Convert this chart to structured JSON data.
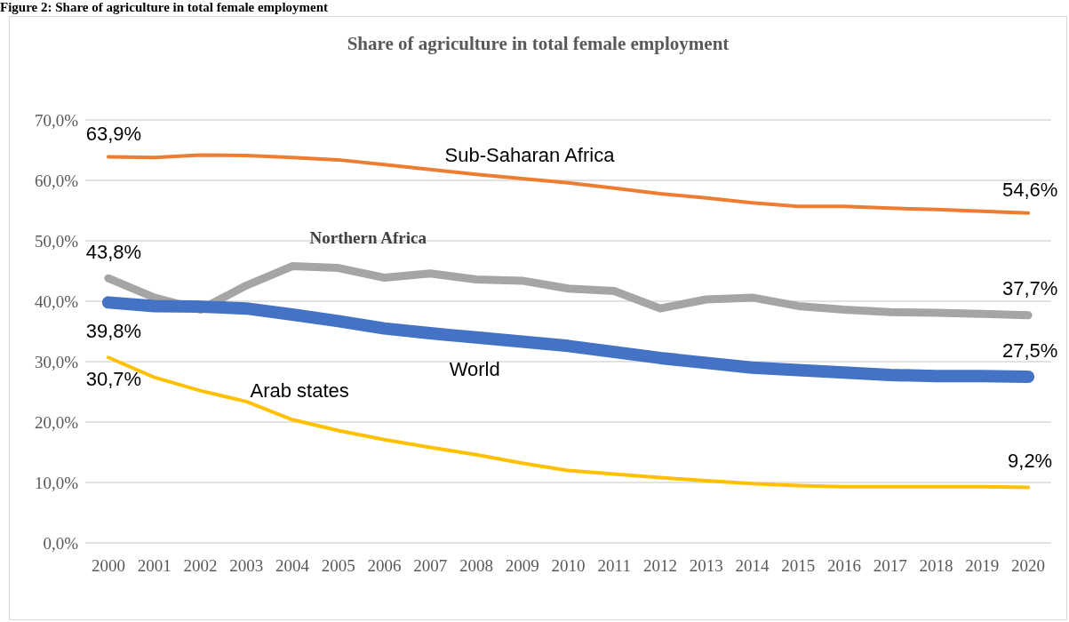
{
  "chart_data": {
    "type": "line",
    "title": "Share of agriculture in total female employment",
    "annotations": [
      "Figure 2: Share of agriculture in total female employment"
    ],
    "categories": [
      "2000",
      "2001",
      "2002",
      "2003",
      "2004",
      "2005",
      "2006",
      "2007",
      "2008",
      "2009",
      "2010",
      "2011",
      "2012",
      "2013",
      "2014",
      "2015",
      "2016",
      "2017",
      "2018",
      "2019",
      "2020"
    ],
    "series": [
      {
        "name": "Sub-Saharan Africa",
        "color": "#ed7d31",
        "values": [
          63.9,
          63.8,
          64.2,
          64.1,
          63.8,
          63.4,
          62.6,
          61.8,
          61.0,
          60.3,
          59.6,
          58.7,
          57.8,
          57.1,
          56.3,
          55.7,
          55.7,
          55.4,
          55.2,
          54.9,
          54.6
        ],
        "value_labels": [
          "63,9%",
          null,
          null,
          null,
          null,
          null,
          null,
          null,
          null,
          null,
          null,
          null,
          null,
          null,
          null,
          null,
          null,
          null,
          null,
          null,
          "54,6%"
        ]
      },
      {
        "name": "Northern Africa",
        "color": "#a5a5a5",
        "values": [
          43.8,
          40.6,
          38.6,
          42.6,
          45.8,
          45.5,
          43.9,
          44.6,
          43.6,
          43.4,
          42.1,
          41.7,
          38.8,
          40.3,
          40.6,
          39.2,
          38.6,
          38.2,
          38.1,
          37.9,
          37.7
        ],
        "value_labels": [
          "43,8%",
          null,
          null,
          null,
          null,
          null,
          null,
          null,
          null,
          null,
          null,
          null,
          null,
          null,
          null,
          null,
          null,
          null,
          null,
          null,
          "37,7%"
        ]
      },
      {
        "name": "World",
        "color": "#4472c4",
        "values": [
          39.8,
          39.2,
          39.1,
          38.8,
          37.8,
          36.7,
          35.5,
          34.7,
          34.0,
          33.3,
          32.6,
          31.6,
          30.6,
          29.8,
          29.0,
          28.6,
          28.2,
          27.8,
          27.6,
          27.6,
          27.5
        ],
        "value_labels": [
          "39,8%",
          null,
          null,
          null,
          null,
          null,
          null,
          null,
          null,
          null,
          null,
          null,
          null,
          null,
          null,
          null,
          null,
          null,
          null,
          null,
          "27,5%"
        ]
      },
      {
        "name": "Arab states",
        "color": "#ffc000",
        "values": [
          30.7,
          27.4,
          25.2,
          23.4,
          20.4,
          18.6,
          17.1,
          15.8,
          14.6,
          13.2,
          12.0,
          11.4,
          10.8,
          10.3,
          9.8,
          9.5,
          9.3,
          9.3,
          9.3,
          9.3,
          9.2
        ],
        "value_labels": [
          "30,7%",
          null,
          null,
          null,
          null,
          null,
          null,
          null,
          null,
          null,
          null,
          null,
          null,
          null,
          null,
          null,
          null,
          null,
          null,
          null,
          "9,2%"
        ]
      }
    ],
    "ylim": [
      0,
      70
    ],
    "yticks": [
      {
        "value": 0,
        "label": "0,0%"
      },
      {
        "value": 10,
        "label": "10,0%"
      },
      {
        "value": 20,
        "label": "20,0%"
      },
      {
        "value": 30,
        "label": "30,0%"
      },
      {
        "value": 40,
        "label": "40,0%"
      },
      {
        "value": 50,
        "label": "50,0%"
      },
      {
        "value": 60,
        "label": "60,0%"
      },
      {
        "value": 70,
        "label": "70,0%"
      }
    ],
    "grid": "y",
    "legend": false,
    "marker": "none",
    "line_style": "solid"
  }
}
